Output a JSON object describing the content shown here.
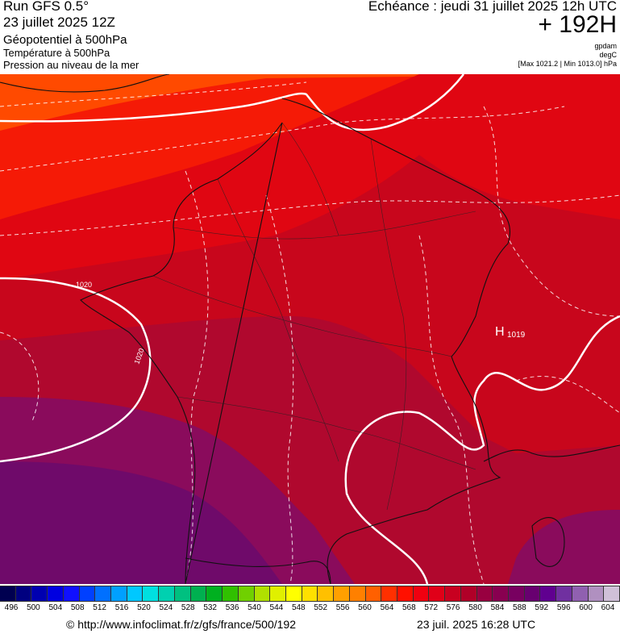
{
  "header": {
    "run_title": "Run GFS 0.5°",
    "run_date": "23 juillet 2025 12Z",
    "param_main": "Géopotentiel à 500hPa",
    "param_sub1": "Température à 500hPa",
    "param_sub2": "Pression au niveau de la mer",
    "echeance": "Echéance : jeudi 31 juillet 2025 12h UTC",
    "forecast_hour": "+ 192H",
    "unit_1": "gpdam",
    "unit_2": "degC",
    "max_min": "[Max 1021.2 | Min 1013.0] hPa"
  },
  "map": {
    "isobar_labels": [
      "1020",
      "1020"
    ],
    "high_marker": "H",
    "high_value": "1019",
    "colors": {
      "deep_purple": "#6f0a6a",
      "purple": "#8a0b5c",
      "crimson": "#b0082e",
      "dark_red": "#c8061c",
      "red": "#e00612",
      "bright_red": "#f51a06",
      "orange_red": "#ff4a00",
      "isobar": "#ffffff",
      "border": "#111111"
    }
  },
  "colorbar": {
    "ticks": [
      "496",
      "500",
      "504",
      "508",
      "512",
      "516",
      "520",
      "524",
      "528",
      "532",
      "536",
      "540",
      "544",
      "548",
      "552",
      "556",
      "560",
      "564",
      "568",
      "572",
      "576",
      "580",
      "584",
      "588",
      "592",
      "596",
      "600",
      "604"
    ],
    "colors": [
      "#000050",
      "#000080",
      "#0000b0",
      "#0000e0",
      "#1010ff",
      "#0040ff",
      "#0070ff",
      "#00a0ff",
      "#00c8ff",
      "#00e0e0",
      "#00d0b0",
      "#00c080",
      "#00b050",
      "#00b020",
      "#30c000",
      "#70d000",
      "#b0e000",
      "#e0f000",
      "#ffff00",
      "#ffe000",
      "#ffc000",
      "#ffa000",
      "#ff8000",
      "#ff6000",
      "#ff3000",
      "#ff1000",
      "#f00010",
      "#e00018",
      "#c80020",
      "#b00028",
      "#980040",
      "#880050",
      "#780060",
      "#680070",
      "#600090",
      "#7030a0",
      "#9060b0",
      "#b090c0",
      "#d0c0d8"
    ]
  },
  "footer": {
    "url": "© http://www.infoclimat.fr/z/gfs/france/500/192",
    "timestamp": "23 juil. 2025 16:28 UTC"
  }
}
